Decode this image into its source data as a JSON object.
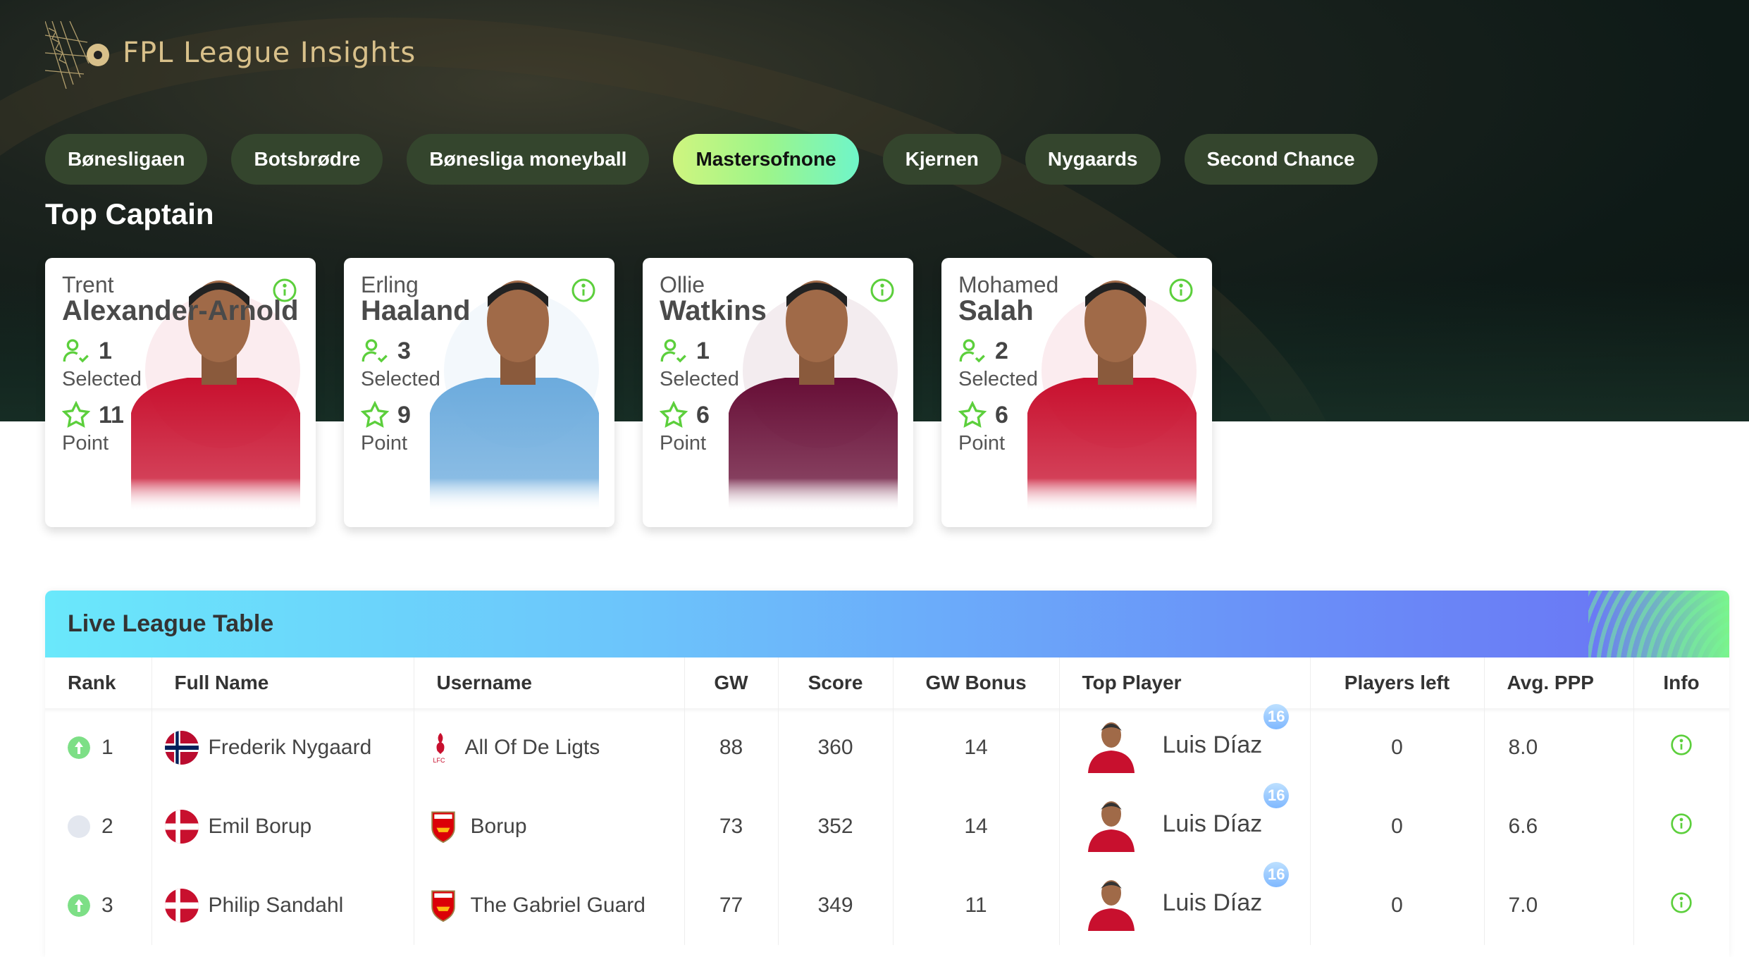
{
  "app": {
    "title": "FPL League Insights"
  },
  "tabs": [
    {
      "label": "Bønesligaen",
      "active": false
    },
    {
      "label": "Botsbrødre",
      "active": false
    },
    {
      "label": "Bønesliga moneyball",
      "active": false
    },
    {
      "label": "Mastersofnone",
      "active": true
    },
    {
      "label": "Kjernen",
      "active": false
    },
    {
      "label": "Nygaards",
      "active": false
    },
    {
      "label": "Second Chance",
      "active": false
    }
  ],
  "top_captain": {
    "title": "Top Captain",
    "selected_label": "Selected",
    "point_label": "Point",
    "cards": [
      {
        "first": "Trent",
        "last": "Alexander-Arnold",
        "selected": "1",
        "points": "11",
        "kit": "#c8102e",
        "club": "liverpool"
      },
      {
        "first": "Erling",
        "last": "Haaland",
        "selected": "3",
        "points": "9",
        "kit": "#6cabdd",
        "club": "man-city"
      },
      {
        "first": "Ollie",
        "last": "Watkins",
        "selected": "1",
        "points": "6",
        "kit": "#670e36",
        "club": "aston-villa"
      },
      {
        "first": "Mohamed",
        "last": "Salah",
        "selected": "2",
        "points": "6",
        "kit": "#c8102e",
        "club": "liverpool"
      }
    ]
  },
  "league_table": {
    "title": "Live League Table",
    "columns": [
      "Rank",
      "Full Name",
      "Username",
      "GW",
      "Score",
      "GW Bonus",
      "Top Player",
      "Players left",
      "Avg. PPP",
      "Info"
    ],
    "rows": [
      {
        "rank": "1",
        "movement": "up",
        "name": "Frederik Nygaard",
        "flag": "norway",
        "username": "All Of De Ligts",
        "team": "liverpool",
        "gw": "88",
        "score": "360",
        "bonus": "14",
        "top_player": "Luis Díaz",
        "top_badge": "16",
        "players_left": "0",
        "ppp": "8.0"
      },
      {
        "rank": "2",
        "movement": "same",
        "name": "Emil Borup",
        "flag": "denmark",
        "username": "Borup",
        "team": "arsenal",
        "gw": "73",
        "score": "352",
        "bonus": "14",
        "top_player": "Luis Díaz",
        "top_badge": "16",
        "players_left": "0",
        "ppp": "6.6"
      },
      {
        "rank": "3",
        "movement": "up",
        "name": "Philip Sandahl",
        "flag": "denmark",
        "username": "The Gabriel Guard",
        "team": "arsenal",
        "gw": "77",
        "score": "349",
        "bonus": "11",
        "top_player": "Luis Díaz",
        "top_badge": "16",
        "players_left": "0",
        "ppp": "7.0"
      }
    ]
  },
  "colors": {
    "accent": "#5ccf3c",
    "tab_bg": "#34452d",
    "active_tab": "#9df58a"
  }
}
